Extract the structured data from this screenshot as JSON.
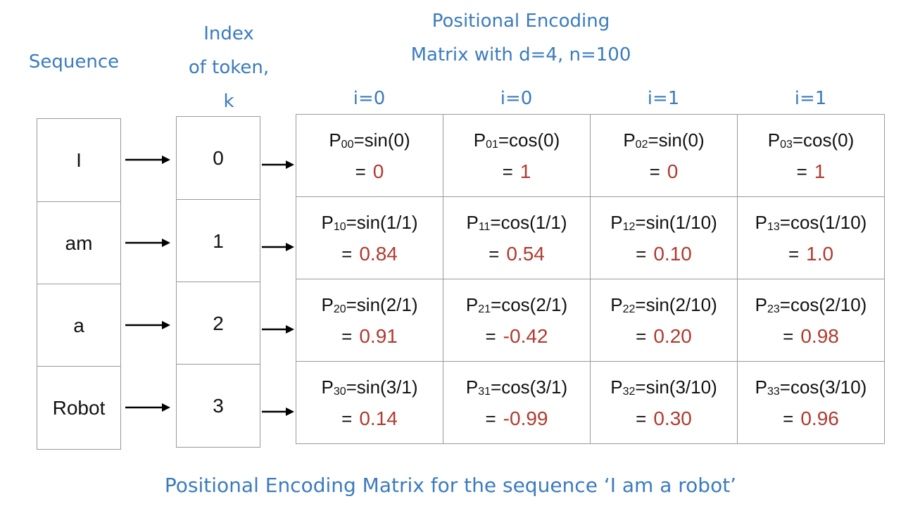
{
  "sequence_label": "Sequence",
  "index_label": [
    "Index",
    "of token,",
    "k"
  ],
  "matrix_label": [
    "Positional Encoding",
    "Matrix with d=4, n=100"
  ],
  "column_headers": [
    "i=0",
    "i=0",
    "i=1",
    "i=1"
  ],
  "tokens": [
    "I",
    "am",
    "a",
    "Robot"
  ],
  "indices": [
    "0",
    "1",
    "2",
    "3"
  ],
  "matrix": [
    [
      {
        "symbol": "P",
        "subscript": "00",
        "formula": "=sin(0)",
        "equals": "=",
        "result": "0"
      },
      {
        "symbol": "P",
        "subscript": "01",
        "formula": "=cos(0)",
        "equals": "=",
        "result": "1"
      },
      {
        "symbol": "P",
        "subscript": "02",
        "formula": "=sin(0)",
        "equals": "=",
        "result": "0"
      },
      {
        "symbol": "P",
        "subscript": "03",
        "formula": "=cos(0)",
        "equals": "=",
        "result": "1"
      }
    ],
    [
      {
        "symbol": "P",
        "subscript": "10",
        "formula": "=sin(1/1)",
        "equals": "=",
        "result": "0.84"
      },
      {
        "symbol": "P",
        "subscript": "11",
        "formula": "=cos(1/1)",
        "equals": "=",
        "result": "0.54"
      },
      {
        "symbol": "P",
        "subscript": "12",
        "formula": "=sin(1/10)",
        "equals": "=",
        "result": "0.10"
      },
      {
        "symbol": "P",
        "subscript": "13",
        "formula": "=cos(1/10)",
        "equals": "=",
        "result": "1.0"
      }
    ],
    [
      {
        "symbol": "P",
        "subscript": "20",
        "formula": "=sin(2/1)",
        "equals": "=",
        "result": "0.91"
      },
      {
        "symbol": "P",
        "subscript": "21",
        "formula": "=cos(2/1)",
        "equals": "=",
        "result": "-0.42"
      },
      {
        "symbol": "P",
        "subscript": "22",
        "formula": "=sin(2/10)",
        "equals": "=",
        "result": "0.20"
      },
      {
        "symbol": "P",
        "subscript": "23",
        "formula": "=cos(2/10)",
        "equals": "=",
        "result": "0.98"
      }
    ],
    [
      {
        "symbol": "P",
        "subscript": "30",
        "formula": "=sin(3/1)",
        "equals": "=",
        "result": "0.14"
      },
      {
        "symbol": "P",
        "subscript": "31",
        "formula": "=cos(3/1)",
        "equals": "=",
        "result": "-0.99"
      },
      {
        "symbol": "P",
        "subscript": "32",
        "formula": "=sin(3/10)",
        "equals": "=",
        "result": "0.30"
      },
      {
        "symbol": "P",
        "subscript": "33",
        "formula": "=cos(3/10)",
        "equals": "=",
        "result": "0.96"
      }
    ]
  ],
  "caption": "Positional Encoding Matrix for the sequence ‘I am a robot’"
}
